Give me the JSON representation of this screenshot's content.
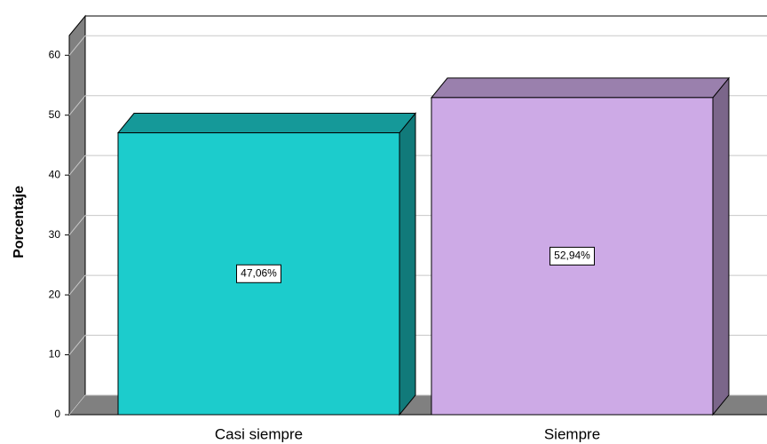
{
  "chart_data": {
    "type": "bar3d",
    "y_label": "Porcentaje",
    "categories": [
      "Casi siempre",
      "Siempre"
    ],
    "values": [
      47.06,
      52.94
    ],
    "value_labels": [
      "47,06%",
      "52,94%"
    ],
    "colors": [
      "#1ccccc",
      "#cdaae6"
    ],
    "ylim": [
      0,
      63.3
    ],
    "yticks": [
      0,
      10,
      20,
      30,
      40,
      50,
      60
    ],
    "grid": true
  }
}
